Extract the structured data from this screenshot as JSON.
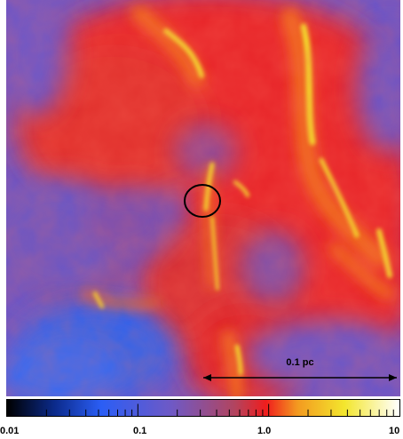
{
  "image": {
    "scale_bar": {
      "label": "0.1 pc"
    },
    "marker": {
      "shape": "circle"
    }
  },
  "colorbar": {
    "scale": "log",
    "range": [
      0.01,
      10
    ],
    "tick_labels": [
      "0.01",
      "0.1",
      "1.0",
      "10"
    ],
    "colors": [
      "#000000",
      "#0b2a8a",
      "#2b5ef5",
      "#6f59c5",
      "#b2445f",
      "#f01d1d",
      "#f39a20",
      "#f3e62d",
      "#ffffff"
    ]
  }
}
